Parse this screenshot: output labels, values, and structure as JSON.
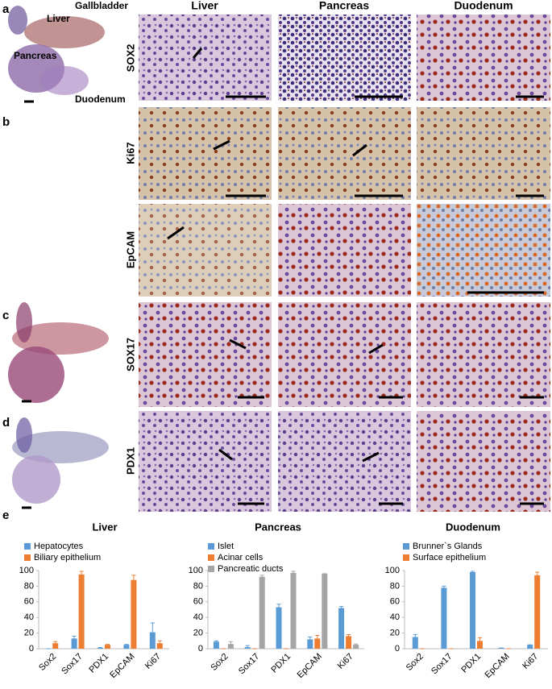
{
  "panel_labels": [
    "a",
    "b",
    "c",
    "d",
    "e"
  ],
  "column_headers": [
    "Liver",
    "Pancreas",
    "Duodenum"
  ],
  "row_labels": [
    "SOX2",
    "Ki67",
    "EpCAM",
    "SOX17",
    "PDX1"
  ],
  "overview_labels": [
    "Gallbladder",
    "Liver",
    "Pancreas",
    "Duodenum"
  ],
  "chart_data": [
    {
      "type": "bar",
      "title": "Liver",
      "categories": [
        "Sox2",
        "Sox17",
        "PDX1",
        "EpCAM",
        "Ki67"
      ],
      "series": [
        {
          "name": "Hepatocytes",
          "color": "#5b9bd5",
          "values": [
            0,
            13,
            1,
            5,
            21
          ],
          "errors": [
            0,
            3,
            0.5,
            0.5,
            12
          ]
        },
        {
          "name": "Biliary epithelium",
          "color": "#ed7d31",
          "values": [
            7,
            95,
            5,
            88,
            7
          ],
          "errors": [
            2,
            4,
            0.5,
            6,
            3
          ]
        }
      ],
      "ylim": [
        0,
        100
      ],
      "yticks": [
        0,
        20,
        40,
        60,
        80,
        100
      ]
    },
    {
      "type": "bar",
      "title": "Pancreas",
      "categories": [
        "Sox2",
        "Sox17",
        "PDX1",
        "EpCAM",
        "Ki67"
      ],
      "series": [
        {
          "name": "Islet",
          "color": "#5b9bd5",
          "values": [
            9,
            2,
            53,
            12,
            52
          ],
          "errors": [
            1,
            2,
            4,
            3,
            2
          ]
        },
        {
          "name": "Acinar cells",
          "color": "#ed7d31",
          "values": [
            0,
            0,
            0,
            13,
            16
          ],
          "errors": [
            0,
            0,
            0,
            4,
            2
          ]
        },
        {
          "name": "Pancreatic ducts",
          "color": "#a5a5a5",
          "values": [
            6,
            92,
            97,
            96,
            5
          ],
          "errors": [
            3,
            2,
            2,
            0,
            1
          ]
        }
      ],
      "ylim": [
        0,
        100
      ],
      "yticks": [
        0,
        20,
        40,
        60,
        80,
        100
      ]
    },
    {
      "type": "bar",
      "title": "Duodenum",
      "categories": [
        "Sox2",
        "Sox17",
        "PDX1",
        "EpCAM",
        "Ki67"
      ],
      "series": [
        {
          "name": "Brunner`s Glands",
          "color": "#5b9bd5",
          "values": [
            15,
            78,
            98,
            1,
            5
          ],
          "errors": [
            3,
            2,
            1,
            0,
            0
          ]
        },
        {
          "name": "Surface epithelium",
          "color": "#ed7d31",
          "values": [
            0,
            0,
            10,
            0,
            94
          ],
          "errors": [
            0,
            0,
            4,
            0,
            4
          ]
        }
      ],
      "ylim": [
        0,
        100
      ],
      "yticks": [
        0,
        20,
        40,
        60,
        80,
        100
      ]
    }
  ]
}
